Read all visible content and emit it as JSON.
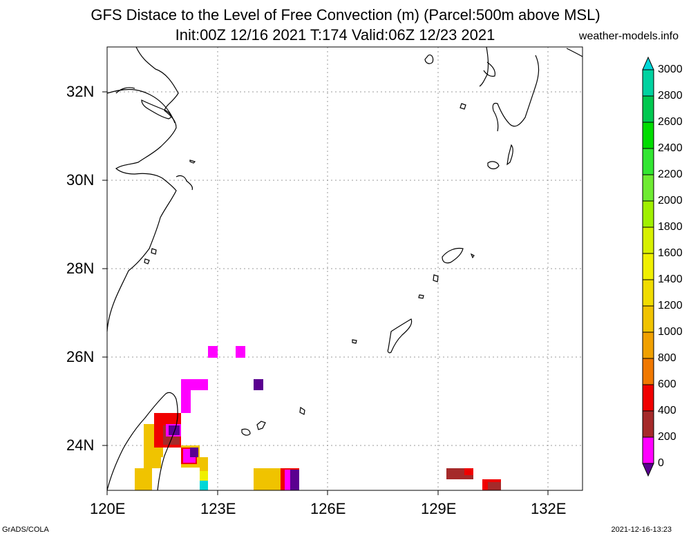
{
  "header": {
    "title_line1": "GFS Distace to the Level of Free Convection (m) (Parcel:500m above MSL)",
    "title_line2": "Init:00Z 12/16 2021 T:174 Valid:06Z 12/23 2021",
    "site": "weather-models.info"
  },
  "axes": {
    "lat_labels": [
      "32N",
      "30N",
      "28N",
      "26N",
      "24N"
    ],
    "lon_labels": [
      "120E",
      "123E",
      "126E",
      "129E",
      "132E"
    ]
  },
  "colorbar": {
    "labels": [
      "3000",
      "2800",
      "2600",
      "2400",
      "2200",
      "2000",
      "1800",
      "1600",
      "1400",
      "1200",
      "1000",
      "800",
      "600",
      "400",
      "200",
      "0"
    ],
    "colors": [
      "#00d7d7",
      "#00d2a0",
      "#00c850",
      "#00dc00",
      "#32e632",
      "#6eeb32",
      "#a0f000",
      "#d7f000",
      "#f0f000",
      "#f0dc00",
      "#f0c300",
      "#f0a000",
      "#f07800",
      "#f00000",
      "#a52a2a",
      "#ff00ff",
      "#5a0090"
    ]
  },
  "footer": {
    "left": "GrADS/COLA",
    "right": "2021-12-16-13:23"
  }
}
